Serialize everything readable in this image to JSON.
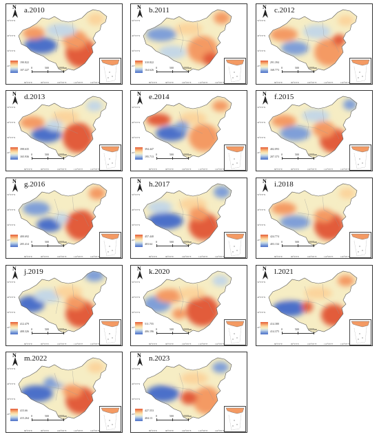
{
  "panels": [
    {
      "title": "a.2010",
      "legend_high": "190.822",
      "legend_low": "107.227",
      "palette": [
        "#e25b3a",
        "#f49a63",
        "#fbd49c",
        "#f6edc4",
        "#c4d7e6",
        "#7f9fd8",
        "#4b6fc9"
      ]
    },
    {
      "title": "b.2011",
      "legend_high": "310.822",
      "legend_low": "164.626",
      "palette": [
        "#e25b3a",
        "#f49a63",
        "#fbd49c",
        "#f6edc4",
        "#c4d7e6",
        "#7f9fd8",
        "#4b6fc9"
      ]
    },
    {
      "title": "c.2012",
      "legend_high": "291.394",
      "legend_low": "168.773",
      "palette": [
        "#e25b3a",
        "#f49a63",
        "#fbd49c",
        "#f6edc4",
        "#c4d7e6",
        "#7f9fd8",
        "#4b6fc9"
      ]
    },
    {
      "title": "d.2013",
      "legend_high": "398.635",
      "legend_low": "165.936",
      "palette": [
        "#e25b3a",
        "#f49a63",
        "#fbd49c",
        "#f6edc4",
        "#c4d7e6",
        "#7f9fd8",
        "#4b6fc9"
      ]
    },
    {
      "title": "e.2014",
      "legend_high": "394.447",
      "legend_low": "195.713",
      "palette": [
        "#e25b3a",
        "#f49a63",
        "#fbd49c",
        "#f6edc4",
        "#c4d7e6",
        "#7f9fd8",
        "#4b6fc9"
      ]
    },
    {
      "title": "f.2015",
      "legend_high": "402.093",
      "legend_low": "207.373",
      "palette": [
        "#e25b3a",
        "#f49a63",
        "#fbd49c",
        "#f6edc4",
        "#c4d7e6",
        "#7f9fd8",
        "#4b6fc9"
      ]
    },
    {
      "title": "g.2016",
      "legend_high": "400.692",
      "legend_low": "205.414",
      "palette": [
        "#e25b3a",
        "#f49a63",
        "#fbd49c",
        "#f6edc4",
        "#c4d7e6",
        "#7f9fd8",
        "#4b6fc9"
      ]
    },
    {
      "title": "h.2017",
      "legend_high": "457.440",
      "legend_low": "403.64",
      "palette": [
        "#e25b3a",
        "#f49a63",
        "#fbd49c",
        "#f6edc4",
        "#c4d7e6",
        "#7f9fd8",
        "#4b6fc9"
      ]
    },
    {
      "title": "i.2018",
      "legend_high": "424.774",
      "legend_low": "403.134",
      "palette": [
        "#e25b3a",
        "#f49a63",
        "#fbd49c",
        "#f6edc4",
        "#c4d7e6",
        "#7f9fd8",
        "#4b6fc9"
      ]
    },
    {
      "title": "j.2019",
      "legend_high": "412.479",
      "legend_low": "408.326",
      "palette": [
        "#e25b3a",
        "#f49a63",
        "#fbd49c",
        "#f6edc4",
        "#c4d7e6",
        "#7f9fd8",
        "#4b6fc9"
      ]
    },
    {
      "title": "k.2020",
      "legend_high": "511.755",
      "legend_low": "406.196",
      "palette": [
        "#e25b3a",
        "#f49a63",
        "#fbd49c",
        "#f6edc4",
        "#c4d7e6",
        "#7f9fd8",
        "#4b6fc9"
      ]
    },
    {
      "title": "l.2021",
      "legend_high": "414.380",
      "legend_low": "414.375",
      "palette": [
        "#e25b3a",
        "#f49a63",
        "#fbd49c",
        "#f6edc4",
        "#c4d7e6",
        "#7f9fd8",
        "#4b6fc9"
      ]
    },
    {
      "title": "m.2022",
      "legend_high": "415.66",
      "legend_low": "415.264",
      "palette": [
        "#e25b3a",
        "#f49a63",
        "#fbd49c",
        "#f6edc4",
        "#c4d7e6",
        "#7f9fd8",
        "#4b6fc9"
      ]
    },
    {
      "title": "n.2023",
      "legend_high": "427.553",
      "legend_low": "404.13",
      "palette": [
        "#e25b3a",
        "#f49a63",
        "#fbd49c",
        "#f6edc4",
        "#c4d7e6",
        "#7f9fd8",
        "#4b6fc9"
      ]
    }
  ],
  "scale_bar": {
    "zero": "0",
    "mid": "500",
    "end": "1000km"
  },
  "north_label": "N",
  "lat_labels": [
    "50°0'0\"N",
    "40°0'0\"N",
    "30°0'0\"N",
    "20°0'0\"N"
  ],
  "lon_labels": [
    "80°0'0\"E",
    "90°0'0\"E",
    "100°0'0\"E",
    "110°0'0\"E",
    "120°0'0\"E",
    "130°0'0\"E"
  ]
}
